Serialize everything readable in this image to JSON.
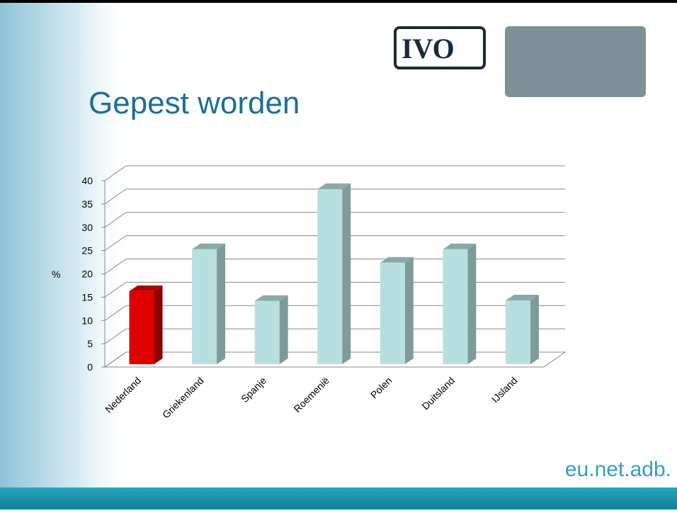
{
  "chart_data": {
    "type": "bar3d",
    "title": "Gepest worden",
    "y_label": "%",
    "categories": [
      "Nederland",
      "Griekenland",
      "Spanje",
      "Roemenië",
      "Polen",
      "Duitsland",
      "IJsland"
    ],
    "values": [
      15.3,
      24.3,
      13.2,
      37.2,
      21.4,
      24.3,
      13.3
    ],
    "colors": [
      "#e00000",
      "#b7dfe0",
      "#b7dfe0",
      "#b7dfe0",
      "#b7dfe0",
      "#b7dfe0",
      "#b7dfe0"
    ],
    "ylim": [
      0,
      40
    ],
    "yticks": [
      0,
      5,
      10,
      15,
      20,
      25,
      30,
      35,
      40
    ],
    "grid": true
  },
  "logos": {
    "left": "IVO",
    "right": "eu.net.adb."
  }
}
